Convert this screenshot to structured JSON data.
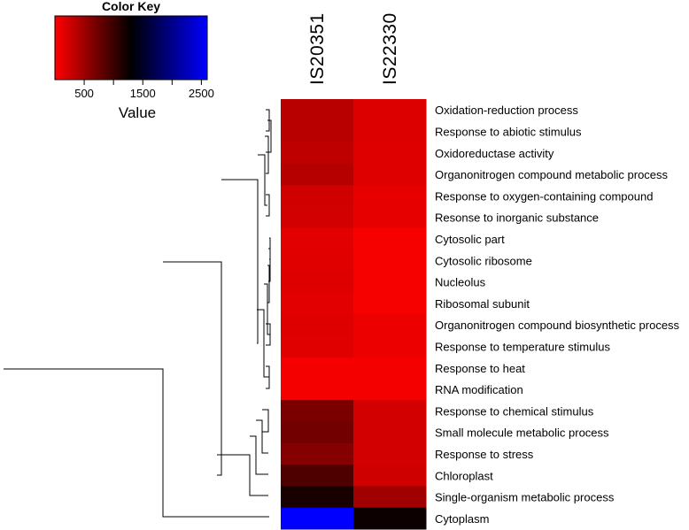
{
  "chart_data": {
    "type": "heatmap",
    "color_key": {
      "title": "Color Key",
      "xlabel": "Value",
      "range": [
        0,
        2600
      ],
      "ticks": [
        500,
        1500,
        2500
      ],
      "tick_labels": [
        "500",
        "1500",
        "2500"
      ],
      "colors": [
        "#ff0000",
        "#000000",
        "#0000ff"
      ],
      "color_midpoint": 1300
    },
    "columns": [
      "IS20351",
      "IS22330"
    ],
    "rows": [
      "Oxidation-reduction process",
      "Response to abiotic stimulus",
      "Oxidoreductase activity",
      "Organonitrogen compound metabolic process",
      "Response to oxygen-containing compound",
      "Resonse to inorganic substance",
      "Cytosolic part",
      "Cytosolic ribosome",
      "Nucleolus",
      "Ribosomal subunit",
      "Organonitrogen compound biosynthetic process",
      "Response to temperature stimulus",
      "Response to heat",
      "RNA modification",
      "Response to chemical stimulus",
      "Small molecule metabolic process",
      "Response to stress",
      "Chloroplast",
      "Single-organism metabolic process",
      "Cytoplasm"
    ],
    "values": [
      [
        360,
        180
      ],
      [
        360,
        180
      ],
      [
        330,
        170
      ],
      [
        370,
        170
      ],
      [
        240,
        120
      ],
      [
        230,
        120
      ],
      [
        150,
        40
      ],
      [
        160,
        40
      ],
      [
        170,
        40
      ],
      [
        150,
        40
      ],
      [
        170,
        90
      ],
      [
        160,
        90
      ],
      [
        50,
        50
      ],
      [
        50,
        50
      ],
      [
        680,
        230
      ],
      [
        720,
        230
      ],
      [
        620,
        230
      ],
      [
        900,
        250
      ],
      [
        1180,
        480
      ],
      [
        2600,
        1240
      ]
    ],
    "dendrogram_present": true
  }
}
